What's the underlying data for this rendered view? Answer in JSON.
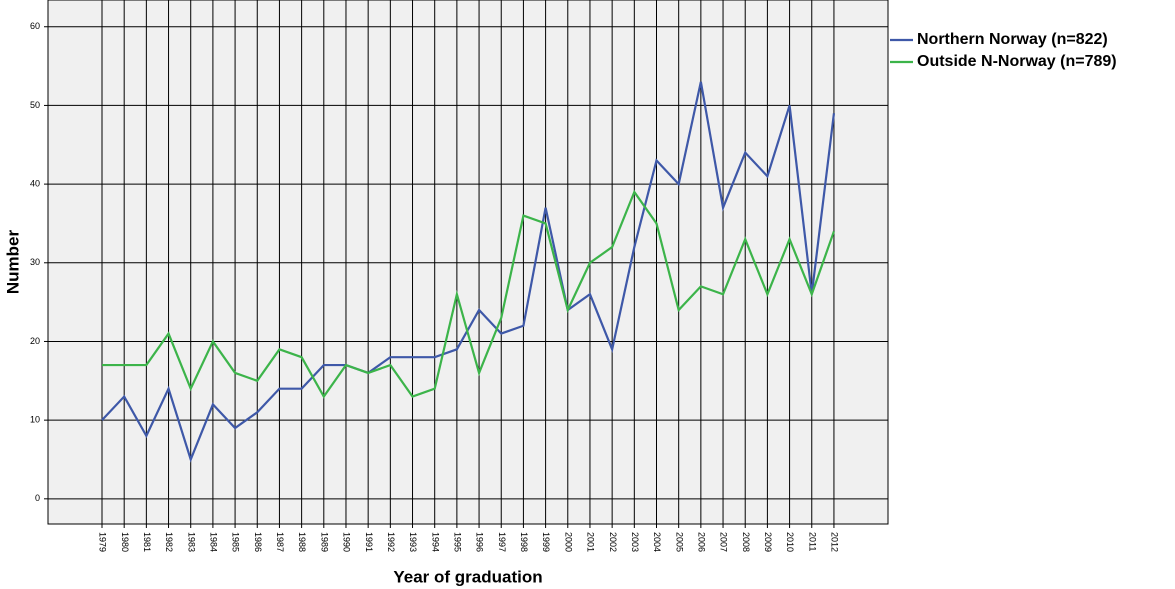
{
  "chart_data": {
    "type": "line",
    "x_label": "Year of graduation",
    "y_label": "Number",
    "categories": [
      "1979",
      "1980",
      "1981",
      "1982",
      "1983",
      "1984",
      "1985",
      "1986",
      "1987",
      "1988",
      "1989",
      "1990",
      "1991",
      "1992",
      "1993",
      "1994",
      "1995",
      "1996",
      "1997",
      "1998",
      "1999",
      "2000",
      "2001",
      "2002",
      "2003",
      "2004",
      "2005",
      "2006",
      "2007",
      "2008",
      "2009",
      "2010",
      "2011",
      "2012"
    ],
    "series": [
      {
        "name": "Northern Norway (n=822)",
        "color": "#3e58a8",
        "values": [
          10,
          13,
          8,
          14,
          5,
          12,
          9,
          11,
          14,
          14,
          17,
          17,
          16,
          18,
          18,
          18,
          19,
          24,
          21,
          22,
          37,
          24,
          26,
          19,
          32,
          43,
          40,
          53,
          37,
          44,
          41,
          50,
          26,
          49
        ]
      },
      {
        "name": "Outside N-Norway (n=789)",
        "color": "#3cb44a",
        "values": [
          17,
          17,
          17,
          21,
          14,
          20,
          16,
          15,
          19,
          18,
          13,
          17,
          16,
          17,
          13,
          14,
          26,
          16,
          23,
          36,
          35,
          24,
          30,
          32,
          39,
          35,
          24,
          27,
          26,
          33,
          26,
          33,
          26,
          34
        ]
      }
    ],
    "ylim": [
      -3.2,
      63.4
    ],
    "yticks": [
      0,
      10,
      20,
      30,
      40,
      50,
      60
    ],
    "grid": true
  }
}
